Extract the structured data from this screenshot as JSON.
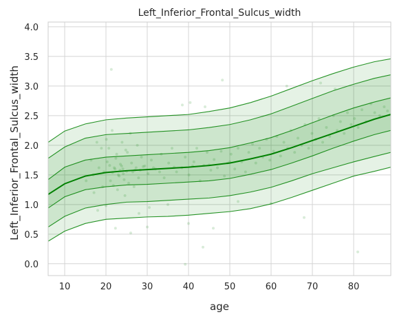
{
  "chart_data": {
    "type": "line",
    "title": "Left_Inferior_Frontal_Sulcus_width",
    "xlabel": "age",
    "ylabel": "Left_Inferior_Frontal_Sulcus_width",
    "xlim": [
      6,
      89
    ],
    "ylim": [
      -0.2,
      4.08
    ],
    "x_ticks": [
      10,
      20,
      30,
      40,
      50,
      60,
      70,
      80
    ],
    "y_ticks": [
      0.0,
      0.5,
      1.0,
      1.5,
      2.0,
      2.5,
      3.0,
      3.5,
      4.0
    ],
    "y_tick_labels": [
      "0.0",
      "0.5",
      "1.0",
      "1.5",
      "2.0",
      "2.5",
      "3.0",
      "3.5",
      "4.0"
    ],
    "grid": true,
    "line_color": "#008000",
    "band_color": "#008000",
    "point_color": "#008000",
    "x": [
      6,
      10,
      15,
      20,
      25,
      30,
      35,
      40,
      45,
      50,
      55,
      60,
      65,
      70,
      75,
      80,
      85,
      89
    ],
    "series": [
      {
        "role": "centile",
        "values": [
          0.38,
          0.55,
          0.68,
          0.75,
          0.77,
          0.79,
          0.8,
          0.82,
          0.85,
          0.88,
          0.93,
          1.01,
          1.12,
          1.24,
          1.36,
          1.48,
          1.56,
          1.63
        ]
      },
      {
        "role": "centile",
        "values": [
          0.62,
          0.8,
          0.94,
          1.0,
          1.04,
          1.05,
          1.07,
          1.09,
          1.11,
          1.15,
          1.21,
          1.29,
          1.4,
          1.52,
          1.62,
          1.72,
          1.81,
          1.88
        ]
      },
      {
        "role": "centile",
        "values": [
          0.94,
          1.13,
          1.25,
          1.3,
          1.33,
          1.34,
          1.36,
          1.38,
          1.4,
          1.44,
          1.51,
          1.59,
          1.7,
          1.82,
          1.95,
          2.07,
          2.18,
          2.25
        ]
      },
      {
        "role": "median",
        "values": [
          1.17,
          1.35,
          1.48,
          1.54,
          1.57,
          1.59,
          1.61,
          1.63,
          1.66,
          1.7,
          1.77,
          1.85,
          1.96,
          2.08,
          2.2,
          2.32,
          2.44,
          2.52
        ]
      },
      {
        "role": "centile",
        "values": [
          1.42,
          1.63,
          1.75,
          1.8,
          1.82,
          1.84,
          1.86,
          1.88,
          1.91,
          1.96,
          2.04,
          2.13,
          2.25,
          2.38,
          2.51,
          2.63,
          2.73,
          2.8
        ]
      },
      {
        "role": "centile",
        "values": [
          1.78,
          1.97,
          2.12,
          2.18,
          2.2,
          2.22,
          2.24,
          2.26,
          2.3,
          2.35,
          2.43,
          2.53,
          2.66,
          2.79,
          2.92,
          3.03,
          3.13,
          3.19
        ]
      },
      {
        "role": "centile",
        "values": [
          2.05,
          2.24,
          2.36,
          2.43,
          2.46,
          2.48,
          2.5,
          2.52,
          2.57,
          2.63,
          2.72,
          2.83,
          2.96,
          3.09,
          3.21,
          3.32,
          3.41,
          3.46
        ]
      }
    ],
    "scatter_points": [
      [
        19.5,
        1.55
      ],
      [
        20.3,
        1.72
      ],
      [
        21.1,
        1.4
      ],
      [
        22.0,
        1.62
      ],
      [
        22.6,
        1.85
      ],
      [
        23.2,
        1.48
      ],
      [
        24.1,
        1.6
      ],
      [
        24.8,
        1.92
      ],
      [
        25.5,
        1.36
      ],
      [
        26.2,
        1.7
      ],
      [
        27.0,
        1.58
      ],
      [
        27.9,
        1.45
      ],
      [
        28.6,
        1.8
      ],
      [
        29.4,
        1.65
      ],
      [
        30.2,
        1.52
      ],
      [
        31.0,
        1.75
      ],
      [
        20.1,
        2.1
      ],
      [
        21.5,
        2.25
      ],
      [
        22.8,
        1.25
      ],
      [
        23.9,
        2.05
      ],
      [
        24.6,
        1.15
      ],
      [
        25.9,
        2.2
      ],
      [
        26.8,
        1.3
      ],
      [
        27.6,
        2.0
      ],
      [
        20.7,
        1.95
      ],
      [
        21.8,
        1.32
      ],
      [
        22.4,
        1.78
      ],
      [
        23.5,
        1.68
      ],
      [
        24.4,
        1.42
      ],
      [
        25.2,
        1.88
      ],
      [
        26.5,
        1.55
      ],
      [
        27.3,
        1.62
      ],
      [
        15.2,
        1.4
      ],
      [
        16.4,
        1.75
      ],
      [
        17.1,
        1.2
      ],
      [
        18.3,
        1.62
      ],
      [
        18.9,
        1.95
      ],
      [
        19.2,
        1.3
      ],
      [
        17.8,
        2.05
      ],
      [
        16.9,
        1.5
      ],
      [
        32.0,
        1.6
      ],
      [
        33.4,
        1.85
      ],
      [
        34.1,
        1.45
      ],
      [
        35.2,
        1.7
      ],
      [
        36.0,
        1.95
      ],
      [
        37.1,
        1.55
      ],
      [
        38.4,
        1.62
      ],
      [
        39.2,
        1.8
      ],
      [
        40.1,
        1.5
      ],
      [
        41.3,
        1.72
      ],
      [
        42.0,
        1.95
      ],
      [
        42.8,
        1.4
      ],
      [
        43.7,
        1.66
      ],
      [
        44.5,
        1.88
      ],
      [
        45.4,
        1.58
      ],
      [
        46.2,
        1.76
      ],
      [
        47.0,
        1.62
      ],
      [
        47.9,
        1.9
      ],
      [
        48.7,
        1.48
      ],
      [
        49.5,
        1.7
      ],
      [
        50.3,
        1.85
      ],
      [
        51.2,
        1.6
      ],
      [
        52.0,
        1.95
      ],
      [
        52.9,
        1.72
      ],
      [
        53.8,
        1.55
      ],
      [
        54.6,
        1.88
      ],
      [
        55.5,
        2.02
      ],
      [
        56.3,
        1.7
      ],
      [
        57.2,
        1.95
      ],
      [
        58.0,
        1.8
      ],
      [
        58.9,
        2.1
      ],
      [
        59.7,
        1.75
      ],
      [
        60.6,
        1.9
      ],
      [
        61.4,
        2.15
      ],
      [
        62.3,
        1.82
      ],
      [
        63.1,
        2.05
      ],
      [
        64.0,
        1.95
      ],
      [
        64.8,
        2.25
      ],
      [
        65.7,
        1.88
      ],
      [
        66.5,
        2.12
      ],
      [
        67.4,
        2.0
      ],
      [
        68.2,
        2.35
      ],
      [
        69.1,
        1.95
      ],
      [
        69.9,
        2.2
      ],
      [
        70.8,
        2.1
      ],
      [
        71.6,
        2.45
      ],
      [
        72.5,
        2.05
      ],
      [
        73.4,
        2.3
      ],
      [
        74.2,
        2.15
      ],
      [
        75.1,
        2.5
      ],
      [
        76.0,
        2.25
      ],
      [
        76.8,
        2.4
      ],
      [
        77.7,
        2.2
      ],
      [
        78.5,
        2.55
      ],
      [
        79.4,
        2.35
      ],
      [
        80.2,
        2.45
      ],
      [
        81.1,
        2.3
      ],
      [
        82.0,
        2.6
      ],
      [
        83.0,
        2.4
      ],
      [
        84.2,
        2.7
      ],
      [
        85.1,
        2.55
      ],
      [
        86.3,
        2.5
      ],
      [
        87.4,
        2.65
      ],
      [
        88.2,
        2.58
      ],
      [
        21.3,
        3.28
      ],
      [
        48.2,
        3.1
      ],
      [
        40.4,
        2.72
      ],
      [
        38.5,
        2.68
      ],
      [
        44.0,
        2.65
      ],
      [
        72.0,
        3.05
      ],
      [
        63.8,
        3.0
      ],
      [
        75.5,
        2.95
      ],
      [
        22.3,
        0.6
      ],
      [
        28.0,
        0.85
      ],
      [
        30.0,
        0.62
      ],
      [
        40.0,
        0.68
      ],
      [
        46.0,
        0.6
      ],
      [
        43.5,
        0.28
      ],
      [
        39.2,
        -0.01
      ],
      [
        26.0,
        0.52
      ],
      [
        81.0,
        0.2
      ],
      [
        68.0,
        0.78
      ],
      [
        60.0,
        1.02
      ],
      [
        35.0,
        1.0
      ],
      [
        30.5,
        0.95
      ],
      [
        20.0,
        0.98
      ],
      [
        18.0,
        0.9
      ],
      [
        52.0,
        1.05
      ],
      [
        23.0,
        1.5
      ],
      [
        23.4,
        1.58
      ],
      [
        23.8,
        1.65
      ],
      [
        24.2,
        1.52
      ],
      [
        22.2,
        1.6
      ],
      [
        21.6,
        1.54
      ],
      [
        20.9,
        1.66
      ],
      [
        25.0,
        1.56
      ],
      [
        28.3,
        1.58
      ],
      [
        29.0,
        1.64
      ],
      [
        31.5,
        1.62
      ],
      [
        33.0,
        1.55
      ],
      [
        36.5,
        1.63
      ],
      [
        41.0,
        1.65
      ],
      [
        45.0,
        1.67
      ],
      [
        50.0,
        1.72
      ]
    ]
  }
}
